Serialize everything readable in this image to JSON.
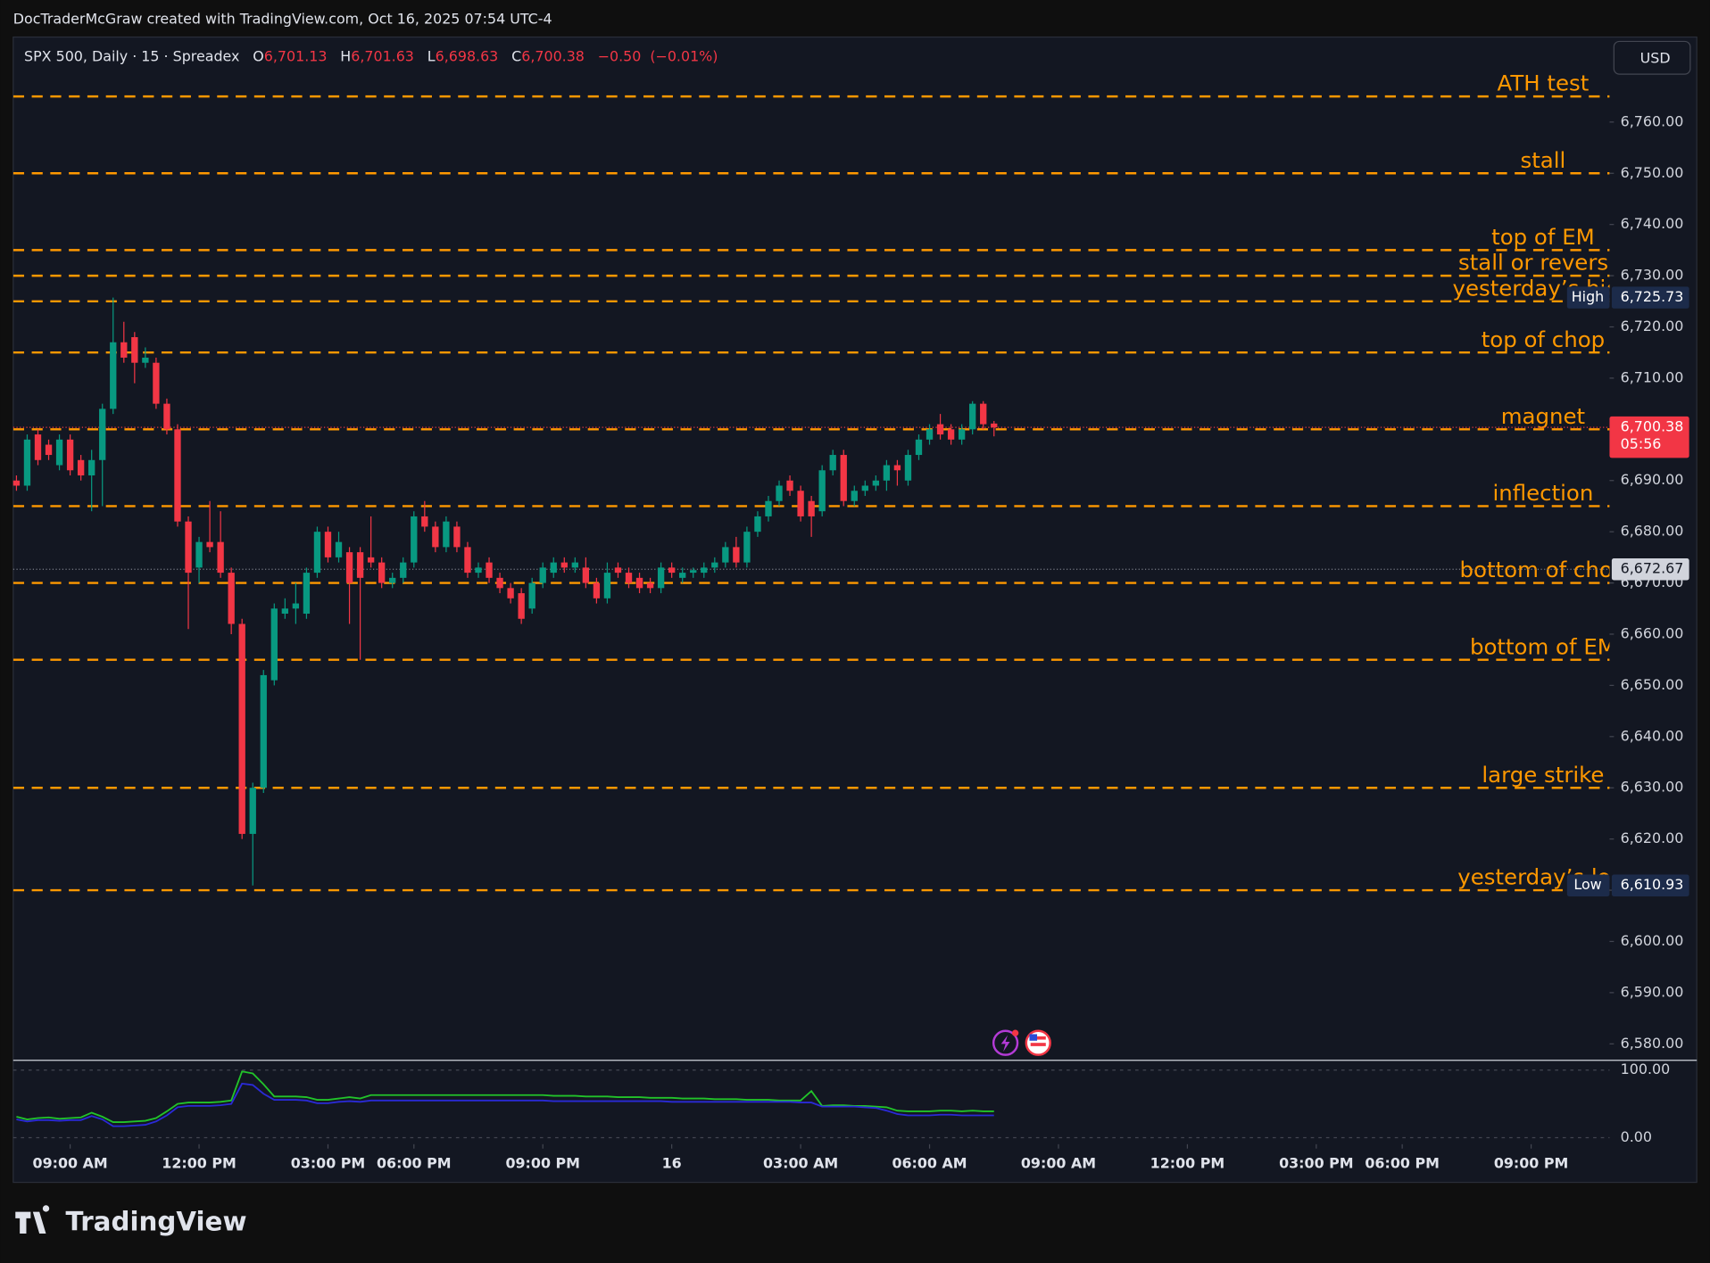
{
  "top_caption": "DocTraderMcGraw created with TradingView.com, Oct 16, 2025 07:54 UTC-4",
  "legend": {
    "symbol": "SPX 500, Daily · 15 · Spreadex",
    "items": [
      {
        "key": "O",
        "value": 6701.13,
        "label": "6,701.13"
      },
      {
        "key": "H",
        "value": 6701.63,
        "label": "6,701.63"
      },
      {
        "key": "L",
        "value": 6698.63,
        "label": "6,698.63"
      },
      {
        "key": "C",
        "value": 6700.38,
        "label": "6,700.38"
      }
    ],
    "change": {
      "value": -0.5,
      "label": "−0.50"
    },
    "change_pct": {
      "value": -0.01,
      "label": "(−0.01%)"
    }
  },
  "currency": "USD",
  "brand": "TradingView",
  "chart_data": [
    {
      "type": "candlestick",
      "up_color": "#089981",
      "down_color": "#f23645",
      "open": [
        6690,
        6689,
        6699,
        6697,
        6693,
        6698,
        6694,
        6691,
        6694,
        6704,
        6717,
        6718,
        6713,
        6713,
        6705,
        6700,
        6682,
        6673,
        6678,
        6678,
        6672,
        6662,
        6621,
        6630,
        6651,
        6664,
        6665,
        6664,
        6672,
        6680,
        6675,
        6676,
        6676,
        6675,
        6674,
        6670,
        6671,
        6674,
        6683,
        6681,
        6677,
        6681,
        6677,
        6672,
        6674,
        6671,
        6669,
        6668,
        6665,
        6670,
        6672,
        6674,
        6673,
        6673,
        6670,
        6667,
        6673,
        6672,
        6671,
        6670,
        6669,
        6673,
        6671,
        6672,
        6672,
        6673,
        6674,
        6677,
        6674,
        6680,
        6683,
        6686,
        6690,
        6688,
        6686,
        6684,
        6692,
        6695,
        6686,
        6688,
        6689,
        6690,
        6693,
        6690,
        6695,
        6698,
        6701,
        6700,
        6698,
        6700,
        6705,
        6701.13
      ],
      "high": [
        6691,
        6699,
        6700,
        6698,
        6699,
        6699,
        6695,
        6696,
        6705,
        6725.73,
        6721,
        6719,
        6716,
        6714,
        6706,
        6701,
        6683,
        6679,
        6686,
        6684,
        6673,
        6663,
        6631,
        6653,
        6666,
        6667,
        6670,
        6673,
        6681,
        6681,
        6680,
        6677,
        6677,
        6683,
        6675,
        6672,
        6675,
        6684,
        6686,
        6682,
        6683,
        6682,
        6678,
        6674,
        6675,
        6672,
        6670,
        6669,
        6671,
        6674,
        6675,
        6675,
        6675,
        6675,
        6671,
        6674,
        6674,
        6673,
        6672,
        6671,
        6674,
        6674,
        6673,
        6673,
        6674,
        6675,
        6678,
        6679,
        6681,
        6684,
        6687,
        6690,
        6691,
        6689,
        6687,
        6693,
        6696,
        6696,
        6689,
        6690,
        6691,
        6694,
        6694,
        6696,
        6699,
        6701,
        6703,
        6701,
        6701,
        6705.5,
        6705.5,
        6701.63
      ],
      "low": [
        6688,
        6688,
        6693,
        6694,
        6692,
        6691,
        6690,
        6684,
        6685,
        6703,
        6713,
        6709,
        6712,
        6704,
        6699,
        6681,
        6661,
        6670,
        6676,
        6671,
        6660,
        6620,
        6610.93,
        6629,
        6650,
        6663,
        6662,
        6663,
        6671,
        6674,
        6674,
        6662,
        6655,
        6673,
        6669,
        6669,
        6670,
        6673,
        6680,
        6676,
        6676,
        6676,
        6671,
        6671,
        6670,
        6668,
        6666,
        6662,
        6664,
        6669,
        6671,
        6672,
        6672,
        6669,
        6666,
        6666,
        6671,
        6669,
        6668,
        6668,
        6668,
        6671,
        6670,
        6671,
        6671,
        6672,
        6673,
        6673,
        6673,
        6679,
        6682,
        6685,
        6687,
        6682,
        6679,
        6683,
        6691,
        6685,
        6685,
        6687,
        6688,
        6688,
        6689,
        6689,
        6694,
        6697,
        6698,
        6697,
        6697,
        6699,
        6700,
        6698.63
      ],
      "close": [
        6689,
        6698,
        6694,
        6695,
        6698,
        6692,
        6691,
        6694,
        6704,
        6717,
        6714,
        6713,
        6714,
        6705,
        6700,
        6682,
        6672,
        6678,
        6677,
        6672,
        6662,
        6621,
        6630,
        6652,
        6665,
        6665,
        6666,
        6672,
        6680,
        6675,
        6678,
        6670,
        6671,
        6674,
        6670,
        6671,
        6674,
        6683,
        6681,
        6677,
        6682,
        6677,
        6672,
        6673,
        6671,
        6669,
        6667,
        6663,
        6670,
        6673,
        6674,
        6673,
        6674,
        6670,
        6667,
        6672,
        6672,
        6670,
        6669,
        6669,
        6673,
        6672,
        6672,
        6672.5,
        6673,
        6674,
        6677,
        6674,
        6680,
        6683,
        6686,
        6689,
        6688,
        6683,
        6683,
        6692,
        6695,
        6686,
        6688,
        6689,
        6690,
        6693,
        6692,
        6695,
        6698,
        6700,
        6699,
        6698,
        6700,
        6705,
        6701,
        6700.38
      ],
      "xlim": [
        -0.3,
        148.3
      ],
      "xticks": [
        {
          "value": 5,
          "label": "09:00 AM"
        },
        {
          "value": 17,
          "label": "12:00 PM"
        },
        {
          "value": 29,
          "label": "03:00 PM"
        },
        {
          "value": 37,
          "label": "06:00 PM"
        },
        {
          "value": 49,
          "label": "09:00 PM"
        },
        {
          "value": 61,
          "label": "16"
        },
        {
          "value": 73,
          "label": "03:00 AM"
        },
        {
          "value": 85,
          "label": "06:00 AM"
        },
        {
          "value": 97,
          "label": "09:00 AM"
        },
        {
          "value": 109,
          "label": "12:00 PM"
        },
        {
          "value": 121,
          "label": "03:00 PM"
        },
        {
          "value": 129,
          "label": "06:00 PM"
        },
        {
          "value": 141,
          "label": "09:00 PM"
        }
      ],
      "ylim": [
        6577,
        6776.6
      ],
      "yticks": [
        {
          "value": 6580,
          "label": "6,580.00"
        },
        {
          "value": 6590,
          "label": "6,590.00"
        },
        {
          "value": 6600,
          "label": "6,600.00"
        },
        {
          "value": 6610,
          "label": "6,610.00"
        },
        {
          "value": 6620,
          "label": "6,620.00"
        },
        {
          "value": 6630,
          "label": "6,630.00"
        },
        {
          "value": 6640,
          "label": "6,640.00"
        },
        {
          "value": 6650,
          "label": "6,650.00"
        },
        {
          "value": 6660,
          "label": "6,660.00"
        },
        {
          "value": 6670,
          "label": "6,670.00"
        },
        {
          "value": 6680,
          "label": "6,680.00"
        },
        {
          "value": 6690,
          "label": "6,690.00"
        },
        {
          "value": 6700,
          "label": "6,700.00"
        },
        {
          "value": 6710,
          "label": "6,710.00"
        },
        {
          "value": 6720,
          "label": "6,720.00"
        },
        {
          "value": 6730,
          "label": "6,730.00"
        },
        {
          "value": 6740,
          "label": "6,740.00"
        },
        {
          "value": 6750,
          "label": "6,750.00"
        },
        {
          "value": 6760,
          "label": "6,760.00"
        }
      ],
      "grid": false,
      "level_color": "#ff9800",
      "levels": [
        {
          "name": "ATH test",
          "value": 6765
        },
        {
          "name": "stall",
          "value": 6750
        },
        {
          "name": "top of EM",
          "value": 6735
        },
        {
          "name": "stall or reversal",
          "value": 6730
        },
        {
          "name": "yesterday’s high",
          "value": 6725
        },
        {
          "name": "top of chop",
          "value": 6715
        },
        {
          "name": "magnet",
          "value": 6700
        },
        {
          "name": "inflection",
          "value": 6685
        },
        {
          "name": "bottom of chop",
          "value": 6670
        },
        {
          "name": "bottom of EM",
          "value": 6655
        },
        {
          "name": "large strike",
          "value": 6630
        },
        {
          "name": "yesterday’s low",
          "value": 6610
        }
      ],
      "high_marker": {
        "name": "High",
        "value": 6725.73,
        "value_label": "6,725.73"
      },
      "low_marker": {
        "name": "Low",
        "value": 6610.93,
        "value_label": "6,610.93"
      },
      "last_price": {
        "value": 6700.38,
        "value_label": "6,700.38",
        "countdown": "05:56"
      },
      "crosshair": {
        "value": 6672.67,
        "value_label": "6,672.67"
      }
    },
    {
      "type": "line",
      "xlim": [
        -0.3,
        148.3
      ],
      "ylim": [
        -9.7,
        114.5
      ],
      "yticks": [
        {
          "value": 0,
          "label": "0.00"
        },
        {
          "value": 100,
          "label": "100.00"
        }
      ],
      "series": [
        {
          "color": "#22c32a",
          "values": [
            31,
            27,
            29,
            30,
            28,
            29,
            30,
            37,
            31,
            23,
            23,
            24,
            25,
            29,
            39,
            50,
            52,
            52,
            52,
            53,
            55,
            98,
            95,
            79,
            61,
            61,
            61,
            60,
            56,
            56,
            58,
            60,
            58,
            63,
            63,
            63,
            63,
            63,
            63,
            63,
            63,
            63,
            63,
            63,
            63,
            63,
            63,
            63,
            63,
            63,
            62,
            62,
            62,
            61,
            61,
            61,
            60,
            60,
            60,
            59,
            59,
            59,
            58,
            58,
            58,
            57,
            57,
            57,
            56,
            56,
            56,
            55,
            55,
            55,
            69,
            47,
            48,
            48,
            47,
            47,
            46,
            45,
            40,
            39,
            39,
            39,
            40,
            40,
            39,
            40,
            39,
            39
          ]
        },
        {
          "color": "#2a2ad6",
          "values": [
            27,
            24,
            26,
            26,
            25,
            26,
            26,
            32,
            27,
            17,
            17,
            18,
            19,
            24,
            33,
            45,
            47,
            47,
            47,
            48,
            50,
            80,
            78,
            65,
            56,
            56,
            56,
            55,
            51,
            51,
            53,
            54,
            53,
            55,
            55,
            55,
            55,
            55,
            55,
            55,
            55,
            55,
            55,
            55,
            55,
            55,
            55,
            55,
            55,
            55,
            54,
            54,
            54,
            54,
            54,
            54,
            54,
            54,
            54,
            54,
            54,
            53,
            53,
            53,
            53,
            53,
            53,
            53,
            53,
            53,
            53,
            53,
            53,
            52,
            52,
            46,
            46,
            46,
            46,
            45,
            44,
            40,
            35,
            33,
            33,
            33,
            34,
            34,
            33,
            33,
            33,
            33
          ]
        }
      ]
    }
  ]
}
